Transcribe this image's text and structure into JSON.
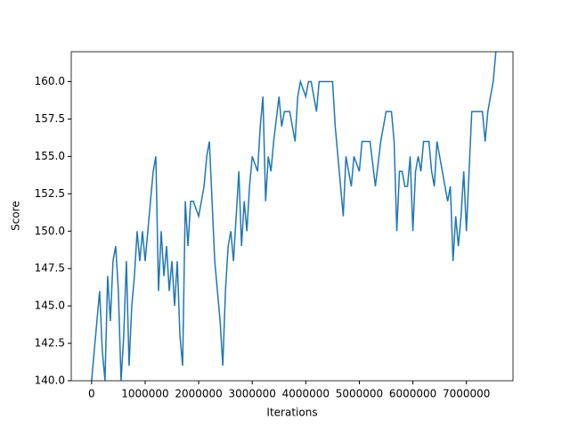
{
  "chart_data": {
    "type": "line",
    "xlabel": "Iterations",
    "ylabel": "Score",
    "x": [
      0,
      50000,
      100000,
      150000,
      200000,
      250000,
      300000,
      350000,
      400000,
      450000,
      500000,
      550000,
      600000,
      650000,
      700000,
      750000,
      800000,
      850000,
      900000,
      950000,
      1000000,
      1050000,
      1100000,
      1150000,
      1200000,
      1250000,
      1300000,
      1350000,
      1400000,
      1450000,
      1500000,
      1550000,
      1600000,
      1650000,
      1700000,
      1750000,
      1800000,
      1850000,
      1900000,
      2000000,
      2050000,
      2100000,
      2150000,
      2200000,
      2250000,
      2300000,
      2400000,
      2450000,
      2500000,
      2550000,
      2600000,
      2650000,
      2700000,
      2750000,
      2800000,
      2850000,
      2900000,
      2950000,
      3000000,
      3100000,
      3150000,
      3200000,
      3250000,
      3300000,
      3350000,
      3400000,
      3500000,
      3550000,
      3600000,
      3700000,
      3800000,
      3850000,
      3900000,
      4000000,
      4050000,
      4100000,
      4200000,
      4250000,
      4500000,
      4550000,
      4600000,
      4650000,
      4700000,
      4750000,
      4800000,
      4850000,
      4900000,
      5000000,
      5050000,
      5200000,
      5300000,
      5400000,
      5500000,
      5600000,
      5650000,
      5700000,
      5750000,
      5800000,
      5850000,
      5900000,
      5950000,
      6000000,
      6050000,
      6100000,
      6150000,
      6200000,
      6300000,
      6350000,
      6400000,
      6450000,
      6500000,
      6600000,
      6650000,
      6700000,
      6750000,
      6800000,
      6850000,
      6900000,
      6950000,
      7000000,
      7050000,
      7100000,
      7300000,
      7350000,
      7400000,
      7500000,
      7550000
    ],
    "series": [
      {
        "name": "Score",
        "color": "#1f77b4",
        "values": [
          140,
          142,
          144,
          146,
          142,
          140,
          147,
          144,
          148,
          149,
          146,
          140,
          143,
          148,
          141,
          145,
          147,
          150,
          148,
          150,
          148,
          150,
          152,
          154,
          155,
          146,
          150,
          147,
          149,
          146,
          148,
          145,
          148,
          143,
          141,
          152,
          149,
          152,
          152,
          151,
          152,
          153,
          155,
          156,
          152,
          148,
          144,
          141,
          146,
          149,
          150,
          148,
          151,
          154,
          149,
          152,
          150,
          153,
          155,
          154,
          157,
          159,
          152,
          155,
          154,
          156,
          159,
          157,
          158,
          158,
          156,
          159,
          160,
          159,
          160,
          160,
          158,
          160,
          160,
          157,
          155,
          153,
          151,
          155,
          154,
          153,
          155,
          154,
          156,
          156,
          153,
          156,
          158,
          158,
          156,
          150,
          154,
          154,
          153,
          153,
          155,
          150,
          154,
          155,
          154,
          156,
          156,
          154,
          153,
          156,
          155,
          153,
          152,
          153,
          148,
          151,
          149,
          151,
          154,
          150,
          154,
          158,
          158,
          156,
          158,
          160,
          162
        ]
      }
    ],
    "xlim": [
      -380000,
      7870000
    ],
    "xticks": [
      0,
      1000000,
      2000000,
      3000000,
      4000000,
      5000000,
      6000000,
      7000000
    ],
    "ylim": [
      140,
      162
    ],
    "yticks": [
      {
        "value": 140,
        "label": "140.0"
      },
      142.5,
      {
        "value": 145,
        "label": "145.0"
      },
      147.5,
      {
        "value": 150,
        "label": "150.0"
      },
      152.5,
      {
        "value": 155,
        "label": "155.0"
      },
      157.5,
      {
        "value": 160,
        "label": "160.0"
      }
    ]
  }
}
